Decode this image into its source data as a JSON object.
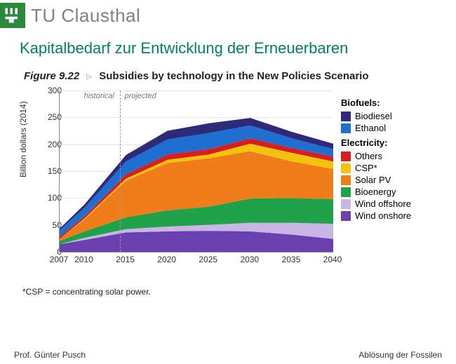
{
  "header": {
    "university": "TU Clausthal",
    "logo_bg": "#2a8a3a"
  },
  "title": "Kapitalbedarf zur Entwicklung der Erneuerbaren",
  "figure": {
    "number": "Figure 9.22",
    "caption": "Subsidies by technology in the New Policies Scenario",
    "footnote": "*CSP = concentrating solar power.",
    "ylabel": "Billion dollars (2014)",
    "historical_label": "historical",
    "projected_label": "projected",
    "divider_year": 2015
  },
  "chart": {
    "type": "stacked-area",
    "x_years": [
      2007,
      2010,
      2015,
      2020,
      2025,
      2030,
      2035,
      2040
    ],
    "xlim": [
      2007,
      2040
    ],
    "ylim": [
      0,
      300
    ],
    "ytick_step": 50,
    "background_color": "#ffffff",
    "grid_color": "#e6e6e6",
    "axis_color": "#888888",
    "label_fontsize": 12,
    "series": [
      {
        "name": "Wind onshore",
        "color": "#6a3fb0",
        "values": [
          14,
          22,
          36,
          38,
          39,
          38,
          32,
          24
        ]
      },
      {
        "name": "Wind offshore",
        "color": "#c9b6e4",
        "values": [
          0,
          4,
          6,
          9,
          11,
          16,
          22,
          28
        ]
      },
      {
        "name": "Bioenergy",
        "color": "#1fa24a",
        "values": [
          6,
          12,
          22,
          30,
          34,
          45,
          46,
          46
        ]
      },
      {
        "name": "Solar PV",
        "color": "#f07d1a",
        "values": [
          4,
          22,
          68,
          88,
          90,
          88,
          68,
          56
        ]
      },
      {
        "name": "CSP*",
        "color": "#f2c20d",
        "values": [
          0,
          2,
          4,
          6,
          7,
          14,
          16,
          14
        ]
      },
      {
        "name": "Others",
        "color": "#d81e1e",
        "values": [
          4,
          4,
          8,
          10,
          10,
          10,
          9,
          9
        ]
      },
      {
        "name": "Ethanol",
        "color": "#1f6fd1",
        "values": [
          12,
          16,
          24,
          28,
          30,
          24,
          18,
          14
        ]
      },
      {
        "name": "Biodiesel",
        "color": "#2e2a7a",
        "values": [
          3,
          6,
          12,
          16,
          18,
          14,
          12,
          10
        ]
      }
    ],
    "legend_groups": [
      {
        "title": "Biofuels:",
        "items": [
          "Biodiesel",
          "Ethanol"
        ]
      },
      {
        "title": "Electricity:",
        "items": [
          "Others",
          "CSP*",
          "Solar PV",
          "Bioenergy",
          "Wind offshore",
          "Wind onshore"
        ]
      }
    ]
  },
  "footer": {
    "left": "Prof. Günter Pusch",
    "right": "Ablösung der Fossilen"
  }
}
